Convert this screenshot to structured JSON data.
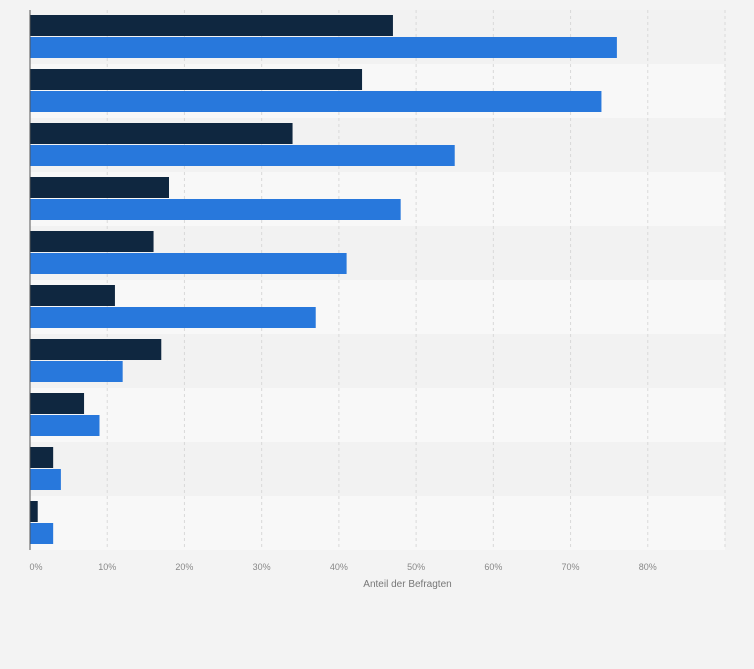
{
  "chart_data": {
    "type": "bar",
    "orientation": "horizontal",
    "xlabel": "Anteil der Befragten",
    "x_ticks": [
      "0%",
      "10%",
      "20%",
      "30%",
      "40%",
      "50%",
      "60%",
      "70%",
      "80%"
    ],
    "xlim": [
      0,
      90
    ],
    "grid": true,
    "unit": "%",
    "category_count": 10,
    "series": [
      {
        "color": "#0f2740",
        "values": [
          47,
          43,
          34,
          18,
          16,
          11,
          17,
          7,
          3,
          1
        ]
      },
      {
        "color": "#2878dc",
        "values": [
          76,
          74,
          55,
          48,
          41,
          37,
          12,
          9,
          4,
          3
        ]
      }
    ]
  },
  "colors": {
    "background": "#f3f3f3",
    "band_light": "#f8f8f8",
    "band_dark": "#f2f2f2",
    "grid": "#d9d9d9",
    "axis": "#555555"
  }
}
